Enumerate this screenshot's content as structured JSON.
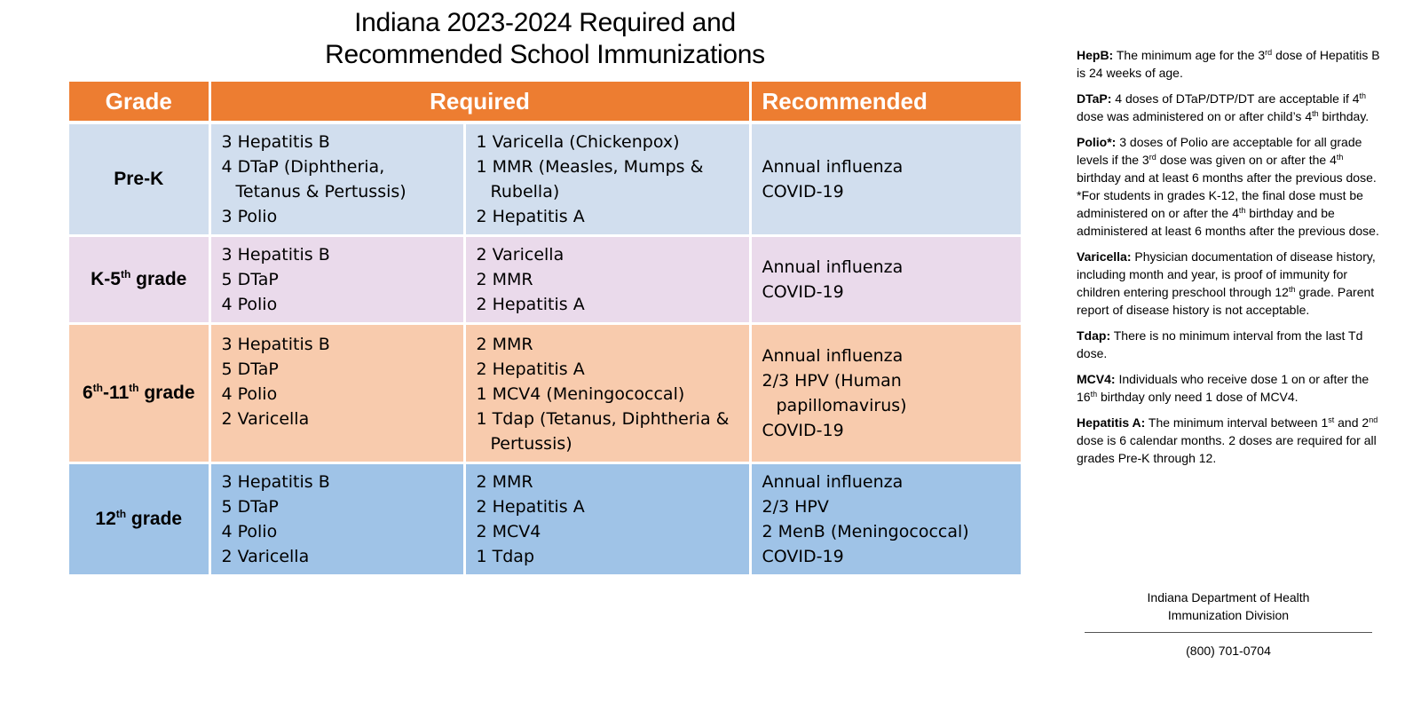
{
  "title": {
    "line1": "Indiana 2023-2024 Required and",
    "line2": "Recommended School Immunizations"
  },
  "table": {
    "headers": {
      "grade": "Grade",
      "required": "Required",
      "recommended": "Recommended"
    },
    "rows": [
      {
        "grade": "Pre-K",
        "required_a": [
          "3 Hepatitis B",
          "4 DTaP (Diphtheria, Tetanus & Pertussis)",
          "3 Polio"
        ],
        "required_b": [
          "1 Varicella (Chickenpox)",
          "1 MMR (Measles, Mumps & Rubella)",
          "2 Hepatitis A"
        ],
        "recommended": [
          "Annual influenza",
          "COVID-19"
        ]
      },
      {
        "grade_prefix": "K-5",
        "grade_sup": "th",
        "grade_suffix": " grade",
        "required_a": [
          "3 Hepatitis B",
          "5 DTaP",
          "4 Polio"
        ],
        "required_b": [
          "2 Varicella",
          "2 MMR",
          "2 Hepatitis A"
        ],
        "recommended": [
          "Annual influenza",
          "COVID-19"
        ]
      },
      {
        "grade_prefix": "6",
        "grade_sup": "th",
        "grade_mid": "-11",
        "grade_sup2": "th",
        "grade_suffix": " grade",
        "required_a": [
          "3 Hepatitis B",
          "5 DTaP",
          "4 Polio",
          "2 Varicella"
        ],
        "required_b": [
          "2 MMR",
          "2 Hepatitis A",
          "1 MCV4 (Meningococcal)",
          "1 Tdap (Tetanus, Diphtheria & Pertussis)"
        ],
        "recommended": [
          "Annual influenza",
          "2/3 HPV (Human papillomavirus)",
          "COVID-19"
        ]
      },
      {
        "grade_prefix": "12",
        "grade_sup": "th",
        "grade_suffix": " grade",
        "required_a": [
          "3 Hepatitis B",
          "5 DTaP",
          "4 Polio",
          "2 Varicella"
        ],
        "required_b": [
          "2 MMR",
          "2 Hepatitis A",
          "2 MCV4",
          "1 Tdap"
        ],
        "recommended": [
          "Annual influenza",
          "2/3 HPV",
          "2 MenB (Meningococcal)",
          "COVID-19"
        ]
      }
    ]
  },
  "notes": {
    "hepb": {
      "label": "HepB:",
      "t1": " The minimum age for the 3",
      "s1": "rd",
      "t2": " dose of Hepatitis B is 24 weeks of age."
    },
    "dtap": {
      "label": "DTaP:",
      "t1": " 4 doses of DTaP/DTP/DT are acceptable if 4",
      "s1": "th",
      "t2": " dose was administered on or after child’s 4",
      "s2": "th",
      "t3": " birthday."
    },
    "polio": {
      "label": "Polio*:",
      "t1": " 3 doses of Polio are acceptable for all grade levels if the 3",
      "s1": "rd",
      "t2": " dose was given on or after the 4",
      "s2": "th",
      "t3": " birthday and at least 6 months after the previous dose.",
      "u1": "*For students in grades K-12, the final dose must be administered on or after the 4",
      "us1": "th",
      "u2": " birthday and be administered at least 6 months after the previous dose."
    },
    "varicella": {
      "label": "Varicella:",
      "t1": " Physician documentation of disease history, including month and year, is proof of immunity for children entering preschool through 12",
      "s1": "th",
      "t2": " grade. Parent report of disease history is not acceptable."
    },
    "tdap": {
      "label": "Tdap:",
      "t1": " There is no minimum interval from the last Td dose."
    },
    "mcv4": {
      "label": "MCV4:",
      "t1": " Individuals who receive dose 1 on or after the 16",
      "s1": "th",
      "t2": " birthday only need 1 dose of MCV4."
    },
    "hepa": {
      "label": "Hepatitis A:",
      "t1": " The minimum interval between 1",
      "s1": "st",
      "t2": " and 2",
      "s2": "nd",
      "t3": " dose is 6 calendar months. 2 doses are required for all grades Pre-K through 12."
    }
  },
  "footer": {
    "org_line1": "Indiana Department of Health",
    "org_line2": "Immunization Division",
    "phone": "(800) 701-0704"
  }
}
